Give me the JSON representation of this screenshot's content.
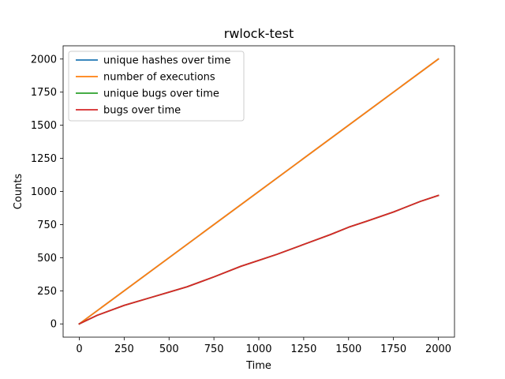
{
  "chart_data": {
    "type": "line",
    "title": "rwlock-test",
    "xlabel": "Time",
    "ylabel": "Counts",
    "xlim": [
      -90,
      2090
    ],
    "ylim": [
      -100,
      2100
    ],
    "xticks": [
      0,
      250,
      500,
      750,
      1000,
      1250,
      1500,
      1750,
      2000
    ],
    "yticks": [
      0,
      250,
      500,
      750,
      1000,
      1250,
      1500,
      1750,
      2000
    ],
    "grid": false,
    "legend_position": "upper-left",
    "series": [
      {
        "name": "unique hashes over time",
        "color": "#1f77b4",
        "x": [
          0,
          2000
        ],
        "y": [
          0,
          2000
        ]
      },
      {
        "name": "number of executions",
        "color": "#ff7f0e",
        "x": [
          0,
          2000
        ],
        "y": [
          0,
          2000
        ]
      },
      {
        "name": "unique bugs over time",
        "color": "#2ca02c",
        "x": [
          0,
          100,
          250,
          400,
          500,
          600,
          750,
          900,
          1000,
          1100,
          1250,
          1400,
          1500,
          1600,
          1750,
          1900,
          2000
        ],
        "y": [
          0,
          65,
          140,
          200,
          240,
          280,
          355,
          435,
          480,
          525,
          600,
          675,
          730,
          775,
          845,
          925,
          970
        ]
      },
      {
        "name": "bugs over time",
        "color": "#d62728",
        "x": [
          0,
          100,
          250,
          400,
          500,
          600,
          750,
          900,
          1000,
          1100,
          1250,
          1400,
          1500,
          1600,
          1750,
          1900,
          2000
        ],
        "y": [
          0,
          65,
          140,
          200,
          240,
          280,
          355,
          435,
          480,
          525,
          600,
          675,
          730,
          775,
          845,
          925,
          970
        ]
      }
    ]
  }
}
